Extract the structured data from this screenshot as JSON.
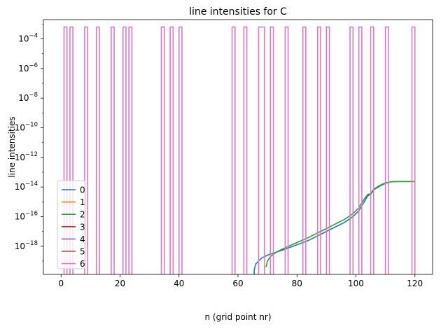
{
  "chart_data": {
    "type": "line",
    "title": "line intensities for C",
    "xlabel": "n (grid point nr)",
    "ylabel": "line intensities",
    "xlim": [
      -6,
      126
    ],
    "ylim_log10": [
      -19.9,
      -2.7
    ],
    "yscale": "log",
    "grid": false,
    "legend_position": "lower-left",
    "x_ticks": [
      0,
      20,
      40,
      60,
      80,
      100,
      120
    ],
    "x_tick_labels": [
      "0",
      "20",
      "40",
      "60",
      "80",
      "100",
      "120"
    ],
    "y_ticks_log10": [
      -18,
      -16,
      -14,
      -12,
      -10,
      -8,
      -6,
      -4
    ],
    "y_tick_labels": [
      {
        "base": "10",
        "exp": "−18"
      },
      {
        "base": "10",
        "exp": "−16"
      },
      {
        "base": "10",
        "exp": "−14"
      },
      {
        "base": "10",
        "exp": "−12"
      },
      {
        "base": "10",
        "exp": "−10"
      },
      {
        "base": "10",
        "exp": "−8"
      },
      {
        "base": "10",
        "exp": "−6"
      },
      {
        "base": "10",
        "exp": "−4"
      }
    ],
    "series": [
      {
        "name": "0",
        "color": "#1f77b4",
        "points": [
          [
            65.5,
            -30
          ],
          [
            65.5,
            -19.6
          ],
          [
            66,
            -19.2
          ],
          [
            68,
            -18.8
          ],
          [
            70,
            -18.6
          ],
          [
            73,
            -18.4
          ],
          [
            76,
            -18.2
          ],
          [
            80,
            -17.9
          ],
          [
            84,
            -17.6
          ],
          [
            88,
            -17.2
          ],
          [
            92,
            -16.8
          ],
          [
            96,
            -16.4
          ],
          [
            99,
            -16.0
          ],
          [
            101,
            -15.6
          ],
          [
            102.5,
            -15.1
          ],
          [
            104,
            -14.6
          ],
          [
            105,
            -14.5
          ],
          [
            106,
            -14.2
          ],
          [
            108,
            -13.95
          ],
          [
            110,
            -13.75
          ],
          [
            112,
            -13.65
          ],
          [
            114,
            -13.63
          ],
          [
            120,
            -13.63
          ]
        ]
      },
      {
        "name": "1",
        "color": "#ff7f0e",
        "points": []
      },
      {
        "name": "2",
        "color": "#2ca02c",
        "points": [
          [
            69.5,
            -19.4
          ],
          [
            70,
            -19.0
          ],
          [
            71,
            -18.7
          ],
          [
            73,
            -18.4
          ],
          [
            76,
            -18.1
          ],
          [
            80,
            -17.75
          ],
          [
            84,
            -17.4
          ],
          [
            88,
            -17.0
          ],
          [
            92,
            -16.6
          ],
          [
            96,
            -16.2
          ],
          [
            99,
            -15.8
          ],
          [
            101,
            -15.4
          ],
          [
            102.5,
            -14.9
          ],
          [
            104,
            -14.5
          ],
          [
            105,
            -14.45
          ],
          [
            106,
            -14.15
          ],
          [
            108,
            -13.9
          ],
          [
            110,
            -13.72
          ],
          [
            112,
            -13.65
          ],
          [
            114,
            -13.63
          ],
          [
            120,
            -13.63
          ],
          [
            120,
            -30
          ]
        ]
      },
      {
        "name": "3",
        "color": "#d62728",
        "points": []
      },
      {
        "name": "4",
        "color": "#9467bd",
        "points": []
      },
      {
        "name": "5",
        "color": "#8c564b",
        "points": []
      },
      {
        "name": "6",
        "color": "#e377c2",
        "top_log10": -3.2,
        "spike_intervals": [
          [
            1,
            2
          ],
          [
            3,
            4
          ],
          [
            8,
            9
          ],
          [
            12,
            13
          ],
          [
            17,
            18
          ],
          [
            21,
            22
          ],
          [
            23,
            24
          ],
          [
            34,
            35
          ],
          [
            37,
            38
          ],
          [
            40,
            41
          ],
          [
            58,
            59
          ],
          [
            62,
            63
          ],
          [
            67,
            69
          ],
          [
            71,
            72
          ],
          [
            76,
            77
          ],
          [
            82,
            83
          ],
          [
            87,
            88
          ],
          [
            90,
            91
          ],
          [
            98,
            99
          ],
          [
            101,
            102
          ],
          [
            105,
            106
          ],
          [
            110,
            111
          ],
          [
            119,
            120
          ]
        ]
      }
    ]
  }
}
